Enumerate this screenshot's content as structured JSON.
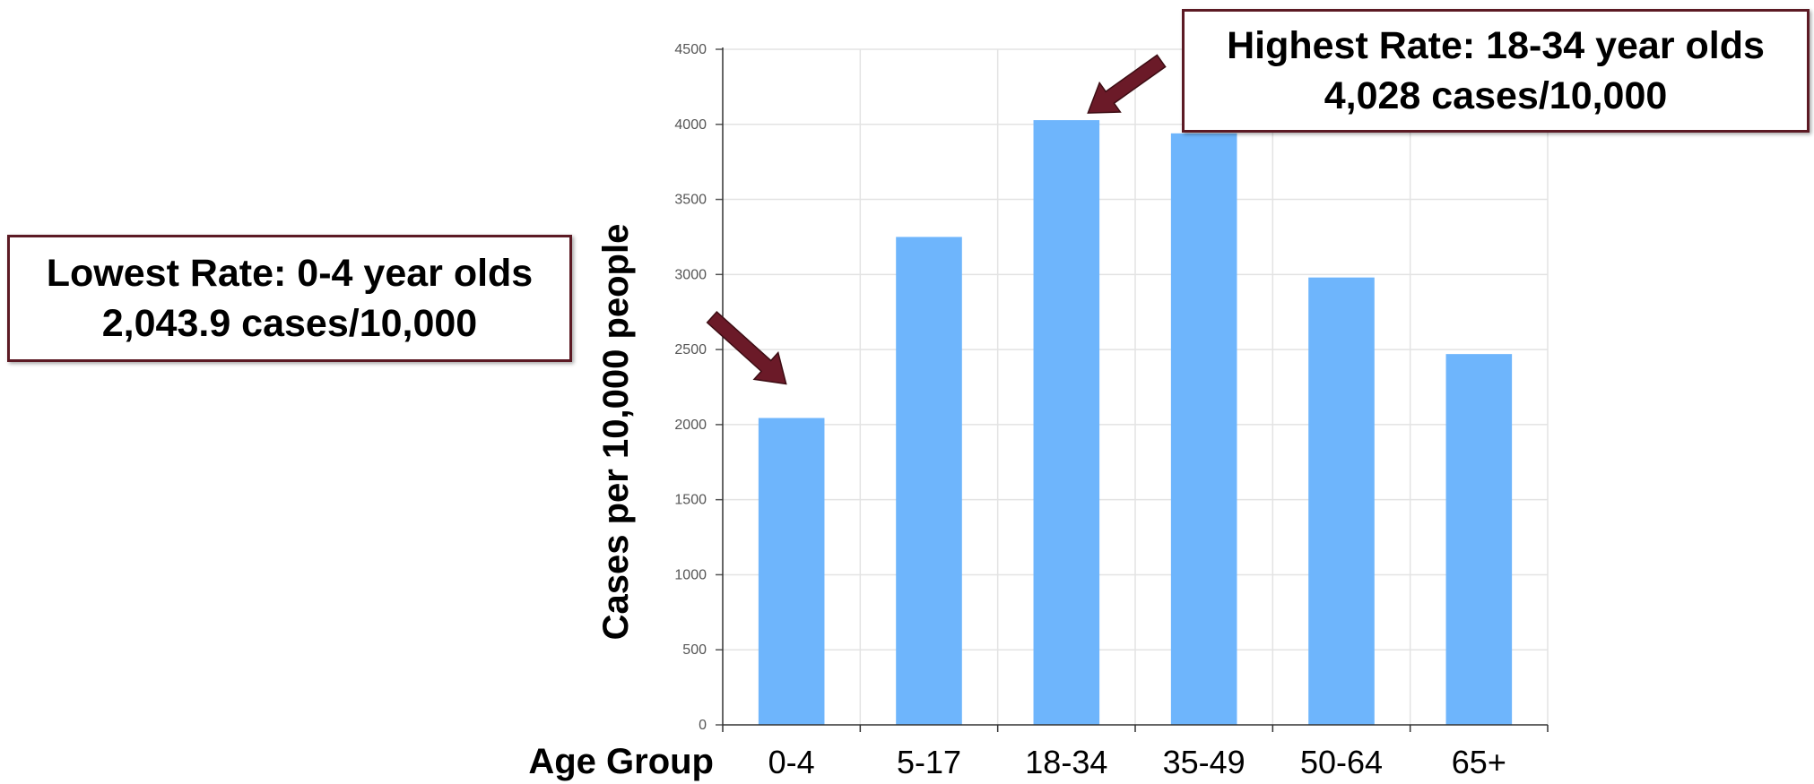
{
  "chart_data": {
    "type": "bar",
    "categories": [
      "0-4",
      "5-17",
      "18-34",
      "35-49",
      "50-64",
      "65+"
    ],
    "values": [
      2044,
      3250,
      4028,
      3940,
      2980,
      2470
    ],
    "xlabel": "Age Group",
    "ylabel": "Cases per 10,000 people",
    "ylim": [
      0,
      4500
    ],
    "yticks": [
      0,
      500,
      1000,
      1500,
      2000,
      2500,
      3000,
      3500,
      4000,
      4500
    ],
    "grid": true,
    "bar_color": "#6eb5fc"
  },
  "annotations": {
    "lowest": {
      "line1": "Lowest Rate: 0-4 year olds",
      "line2": "2,043.9 cases/10,000"
    },
    "highest": {
      "line1": "Highest Rate: 18-34 year olds",
      "line2": "4,028 cases/10,000"
    },
    "border_color": "#5c1a24",
    "arrow_color": "#6b1a28"
  }
}
